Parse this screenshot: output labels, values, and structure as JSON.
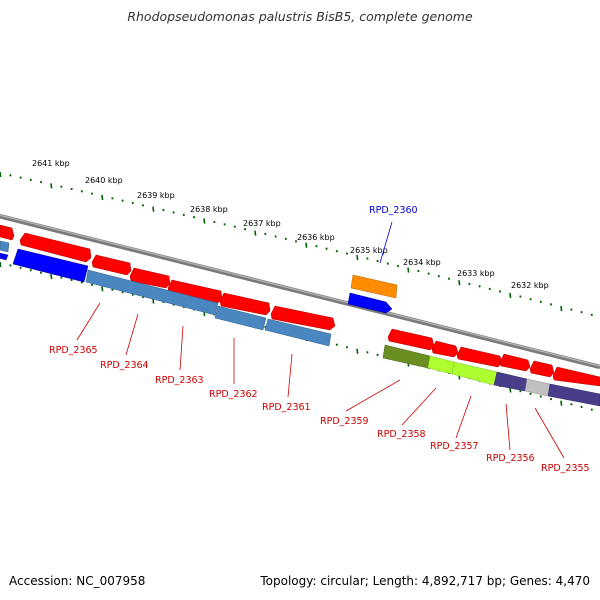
{
  "title": "Rhodopseudomonas palustris BisB5, complete genome",
  "footer": {
    "accession": "Accession: NC_007958",
    "summary": "Topology: circular; Length: 4,892,717 bp; Genes: 4,470"
  },
  "scale_ticks": [
    "2641 kbp",
    "2640 kbp",
    "2639 kbp",
    "2638 kbp",
    "2637 kbp",
    "2636 kbp",
    "2635 kbp",
    "2634 kbp",
    "2633 kbp",
    "2632 kbp"
  ],
  "gene_labels": [
    {
      "name": "RPD_2365",
      "color": "#cc0000"
    },
    {
      "name": "RPD_2364",
      "color": "#cc0000"
    },
    {
      "name": "RPD_2363",
      "color": "#cc0000"
    },
    {
      "name": "RPD_2362",
      "color": "#cc0000"
    },
    {
      "name": "RPD_2361",
      "color": "#cc0000"
    },
    {
      "name": "RPD_2360",
      "color": "#0000cc"
    },
    {
      "name": "RPD_2359",
      "color": "#cc0000"
    },
    {
      "name": "RPD_2358",
      "color": "#cc0000"
    },
    {
      "name": "RPD_2357",
      "color": "#cc0000"
    },
    {
      "name": "RPD_2356",
      "color": "#cc0000"
    },
    {
      "name": "RPD_2355",
      "color": "#cc0000"
    }
  ],
  "colors": {
    "cds_red": "#ff0000",
    "blue": "#0000ff",
    "steel_blue": "#4a86c0",
    "orange": "#ff8c00",
    "olive": "#6b8e23",
    "green_yellow": "#adff2f",
    "dark_slate_blue": "#483d8b",
    "silver": "#c0c0c0",
    "backbone": "#808080",
    "tick_green": "#006400"
  }
}
